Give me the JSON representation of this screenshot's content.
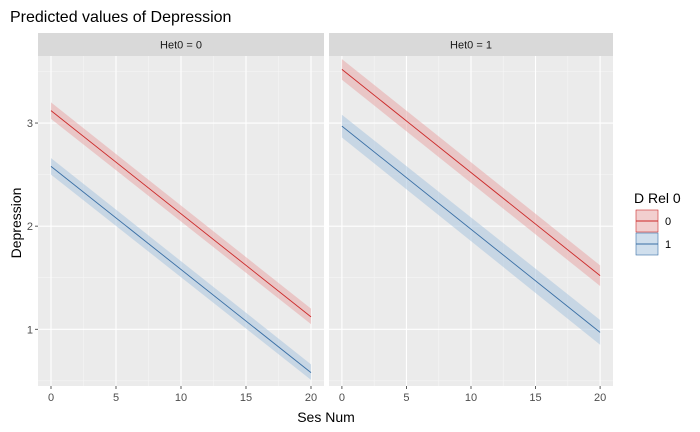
{
  "chart_data": {
    "type": "line",
    "title": "Predicted values of Depression",
    "xlabel": "Ses Num",
    "ylabel": "Depression",
    "xlim": [
      -1,
      21
    ],
    "ylim": [
      0.45,
      3.65
    ],
    "x_ticks": [
      0,
      5,
      10,
      15,
      20
    ],
    "x_tick_labels": [
      "0",
      "5",
      "10",
      "15",
      "20"
    ],
    "y_ticks": [
      1,
      2,
      3
    ],
    "y_tick_labels": [
      "1",
      "2",
      "3"
    ],
    "grid": true,
    "legend": {
      "title": "D Rel 0",
      "position": "right",
      "entries": [
        {
          "label": "0",
          "color": "#cc2a2a",
          "fill": "#e8a8a8"
        },
        {
          "label": "1",
          "color": "#3a6fa5",
          "fill": "#a9c4df"
        }
      ]
    },
    "panels": [
      {
        "strip_label": "Het0 = 0",
        "series": [
          {
            "name": "0",
            "x": [
              0,
              20
            ],
            "y": [
              3.12,
              1.12
            ],
            "lower": [
              3.04,
              1.05
            ],
            "upper": [
              3.2,
              1.2
            ]
          },
          {
            "name": "1",
            "x": [
              0,
              20
            ],
            "y": [
              2.58,
              0.58
            ],
            "lower": [
              2.5,
              0.51
            ],
            "upper": [
              2.66,
              0.66
            ]
          }
        ]
      },
      {
        "strip_label": "Het0 = 1",
        "series": [
          {
            "name": "0",
            "x": [
              0,
              20
            ],
            "y": [
              3.52,
              1.52
            ],
            "lower": [
              3.42,
              1.42
            ],
            "upper": [
              3.62,
              1.62
            ]
          },
          {
            "name": "1",
            "x": [
              0,
              20
            ],
            "y": [
              2.97,
              0.97
            ],
            "lower": [
              2.86,
              0.85
            ],
            "upper": [
              3.08,
              1.09
            ]
          }
        ]
      }
    ]
  }
}
